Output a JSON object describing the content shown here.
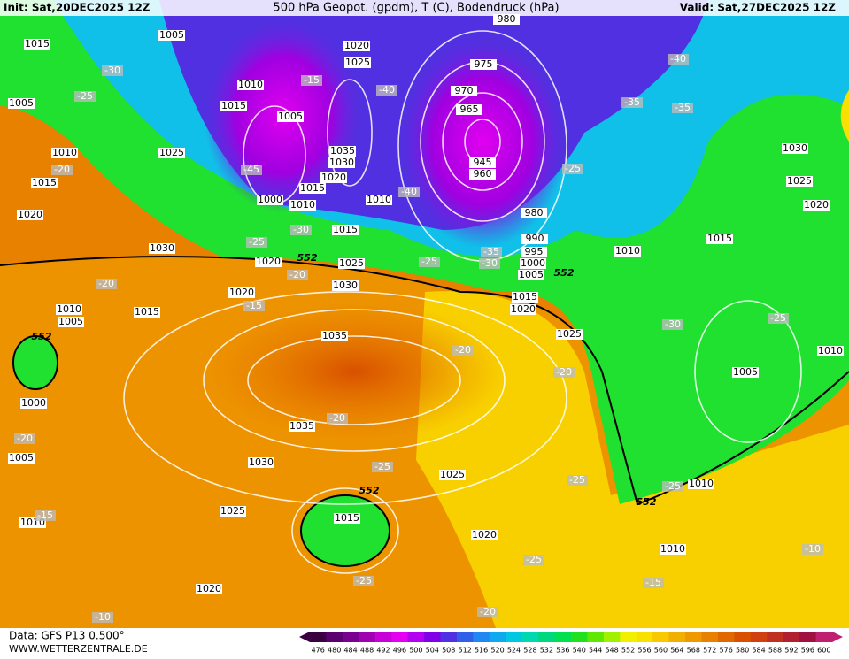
{
  "header": {
    "init": "Init: Sat,20DEC2025 12Z",
    "title": "500 hPa Geopot. (gpdm), T (C), Bodendruck (hPa)",
    "valid": "Valid: Sat,27DEC2025 12Z"
  },
  "footer": {
    "data": "Data: GFS P13 0.500°",
    "site": "WWW.WETTERZENTRALE.DE"
  },
  "colorbar": {
    "values": [
      476,
      480,
      484,
      488,
      492,
      496,
      500,
      504,
      508,
      512,
      516,
      520,
      524,
      528,
      532,
      536,
      540,
      544,
      548,
      552,
      556,
      560,
      564,
      568,
      572,
      576,
      580,
      584,
      588,
      592,
      596,
      600
    ],
    "colors": [
      "#3b0040",
      "#5a0070",
      "#7a0090",
      "#a000b0",
      "#c800d8",
      "#e400f0",
      "#b400f0",
      "#8000e8",
      "#5030e0",
      "#3060e8",
      "#2088f0",
      "#10a8f0",
      "#00c8e0",
      "#00d8b0",
      "#00d880",
      "#00e050",
      "#20e020",
      "#60e800",
      "#a0f000",
      "#f0f000",
      "#f8e000",
      "#f8c800",
      "#f0b000",
      "#f09800",
      "#e88000",
      "#e06800",
      "#d85000",
      "#d04010",
      "#c03020",
      "#b02030",
      "#a01040",
      "#c02070"
    ]
  },
  "map": {
    "isobar_labels": [
      1015,
      1005,
      1020,
      1025,
      1010,
      1015,
      1005,
      1005,
      1010,
      1025,
      1035,
      1030,
      1020,
      1015,
      1000,
      1010,
      1010,
      1015,
      1020,
      1015,
      1030,
      1020,
      1025,
      1020,
      1030,
      1015,
      1010,
      1005,
      1035,
      1000,
      1035,
      1030,
      1025,
      1025,
      1015,
      1020,
      1020,
      1010,
      1010,
      1005,
      975,
      970,
      965,
      945,
      960,
      980,
      990,
      995,
      1000,
      1005,
      1015,
      1020,
      1025,
      1010,
      1015,
      1030,
      1025,
      1020,
      1005,
      1010,
      1010,
      980
    ],
    "temp_labels": [
      -30,
      -25,
      -15,
      -40,
      -35,
      -35,
      -40,
      -45,
      -40,
      -25,
      -20,
      -30,
      -25,
      -25,
      -35,
      -30,
      -20,
      -20,
      -15,
      -20,
      -20,
      -30,
      -25,
      -20,
      -20,
      -25,
      -25,
      -25,
      -15,
      -25,
      -25,
      -15,
      -10,
      -20,
      -10
    ],
    "height_labels": [
      552,
      552,
      552,
      552,
      552
    ]
  }
}
